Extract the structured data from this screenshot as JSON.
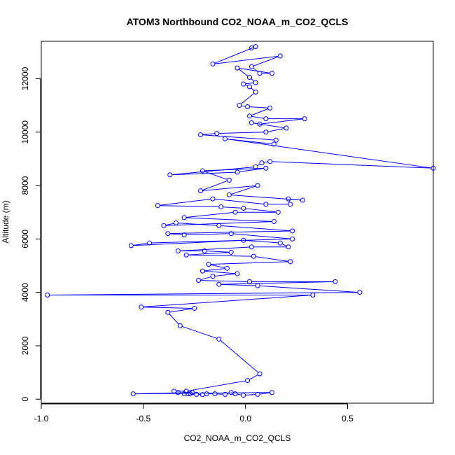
{
  "chart_data": {
    "type": "scatter",
    "title": "ATOM3 Northbound CO2_NOAA_m_CO2_QCLS",
    "xlabel": "CO2_NOAA_m_CO2_QCLS",
    "ylabel": "Altitude (m)",
    "xlim": [
      -1.0,
      0.92
    ],
    "ylim": [
      -150,
      13400
    ],
    "xticks": [
      -1.0,
      -0.5,
      0.0,
      0.5
    ],
    "xtick_labels": [
      "-1.0",
      "-0.5",
      "0.0",
      "0.5"
    ],
    "yticks": [
      0,
      2000,
      4000,
      6000,
      8000,
      10000,
      12000
    ],
    "ytick_labels": [
      "0",
      "2000",
      "4000",
      "6000",
      "8000",
      "10000",
      "12000"
    ],
    "grid": false,
    "marker": "open-circle",
    "connected": true,
    "color": "#0000ff",
    "series": [
      {
        "points": [
          [
            0.03,
            13150
          ],
          [
            0.05,
            13200
          ],
          [
            -0.16,
            12550
          ],
          [
            0.17,
            12850
          ],
          [
            0.03,
            12450
          ],
          [
            0.07,
            12200
          ],
          [
            0.13,
            12200
          ],
          [
            -0.04,
            12400
          ],
          [
            0.02,
            12050
          ],
          [
            0.05,
            11850
          ],
          [
            -0.01,
            11800
          ],
          [
            0.02,
            11700
          ],
          [
            0.05,
            11500
          ],
          [
            -0.03,
            11000
          ],
          [
            0.01,
            10950
          ],
          [
            0.12,
            10900
          ],
          [
            0.02,
            10600
          ],
          [
            0.1,
            10500
          ],
          [
            0.29,
            10500
          ],
          [
            0.07,
            10300
          ],
          [
            0.03,
            10350
          ],
          [
            0.2,
            10150
          ],
          [
            0.1,
            10000
          ],
          [
            -0.14,
            9950
          ],
          [
            -0.22,
            9900
          ],
          [
            0.15,
            9700
          ],
          [
            0.14,
            9550
          ],
          [
            -0.1,
            9750
          ],
          [
            0.92,
            8650
          ],
          [
            0.12,
            8900
          ],
          [
            0.08,
            8850
          ],
          [
            0.05,
            8700
          ],
          [
            -0.37,
            8400
          ],
          [
            -0.04,
            8500
          ],
          [
            0.1,
            8650
          ],
          [
            -0.21,
            8550
          ],
          [
            -0.08,
            8200
          ],
          [
            -0.22,
            7800
          ],
          [
            0.06,
            8000
          ],
          [
            -0.08,
            7650
          ],
          [
            0.28,
            7450
          ],
          [
            0.21,
            7500
          ],
          [
            0.22,
            7300
          ],
          [
            0.1,
            7300
          ],
          [
            -0.16,
            7500
          ],
          [
            -0.43,
            7250
          ],
          [
            -0.12,
            7200
          ],
          [
            -0.01,
            7150
          ],
          [
            0.16,
            7000
          ],
          [
            -0.05,
            7000
          ],
          [
            -0.3,
            6800
          ],
          [
            0.14,
            6650
          ],
          [
            -0.4,
            6500
          ],
          [
            -0.34,
            6600
          ],
          [
            -0.13,
            6500
          ],
          [
            0.23,
            6300
          ],
          [
            -0.38,
            6200
          ],
          [
            -0.3,
            6150
          ],
          [
            -0.07,
            6200
          ],
          [
            0.23,
            6000
          ],
          [
            -0.47,
            5850
          ],
          [
            -0.56,
            5750
          ],
          [
            -0.01,
            5950
          ],
          [
            0.17,
            5850
          ],
          [
            0.21,
            5700
          ],
          [
            0.03,
            5700
          ],
          [
            -0.33,
            5550
          ],
          [
            -0.2,
            5550
          ],
          [
            -0.07,
            5500
          ],
          [
            -0.29,
            5400
          ],
          [
            0.04,
            5350
          ],
          [
            0.22,
            5150
          ],
          [
            -0.18,
            5050
          ],
          [
            -0.09,
            4900
          ],
          [
            -0.21,
            4800
          ],
          [
            -0.04,
            4700
          ],
          [
            -0.16,
            4600
          ],
          [
            -0.23,
            4450
          ],
          [
            0.02,
            4400
          ],
          [
            0.44,
            4400
          ],
          [
            -0.13,
            4300
          ],
          [
            0.06,
            4250
          ],
          [
            0.56,
            4000
          ],
          [
            -0.97,
            3900
          ],
          [
            0.33,
            3900
          ],
          [
            -0.51,
            3450
          ],
          [
            -0.25,
            3400
          ],
          [
            -0.38,
            3250
          ],
          [
            -0.32,
            2750
          ],
          [
            -0.13,
            2250
          ],
          [
            0.07,
            950
          ],
          [
            0.01,
            700
          ],
          [
            -0.29,
            300
          ],
          [
            -0.35,
            300
          ],
          [
            -0.33,
            250
          ],
          [
            -0.3,
            200
          ],
          [
            -0.28,
            200
          ],
          [
            -0.27,
            200
          ],
          [
            -0.24,
            180
          ],
          [
            -0.21,
            170
          ],
          [
            -0.19,
            200
          ],
          [
            -0.15,
            200
          ],
          [
            -0.1,
            180
          ],
          [
            -0.07,
            250
          ],
          [
            -0.05,
            200
          ],
          [
            -0.01,
            150
          ],
          [
            0.06,
            180
          ],
          [
            0.13,
            250
          ],
          [
            -0.55,
            200
          ],
          [
            -0.26,
            250
          ]
        ]
      }
    ]
  }
}
